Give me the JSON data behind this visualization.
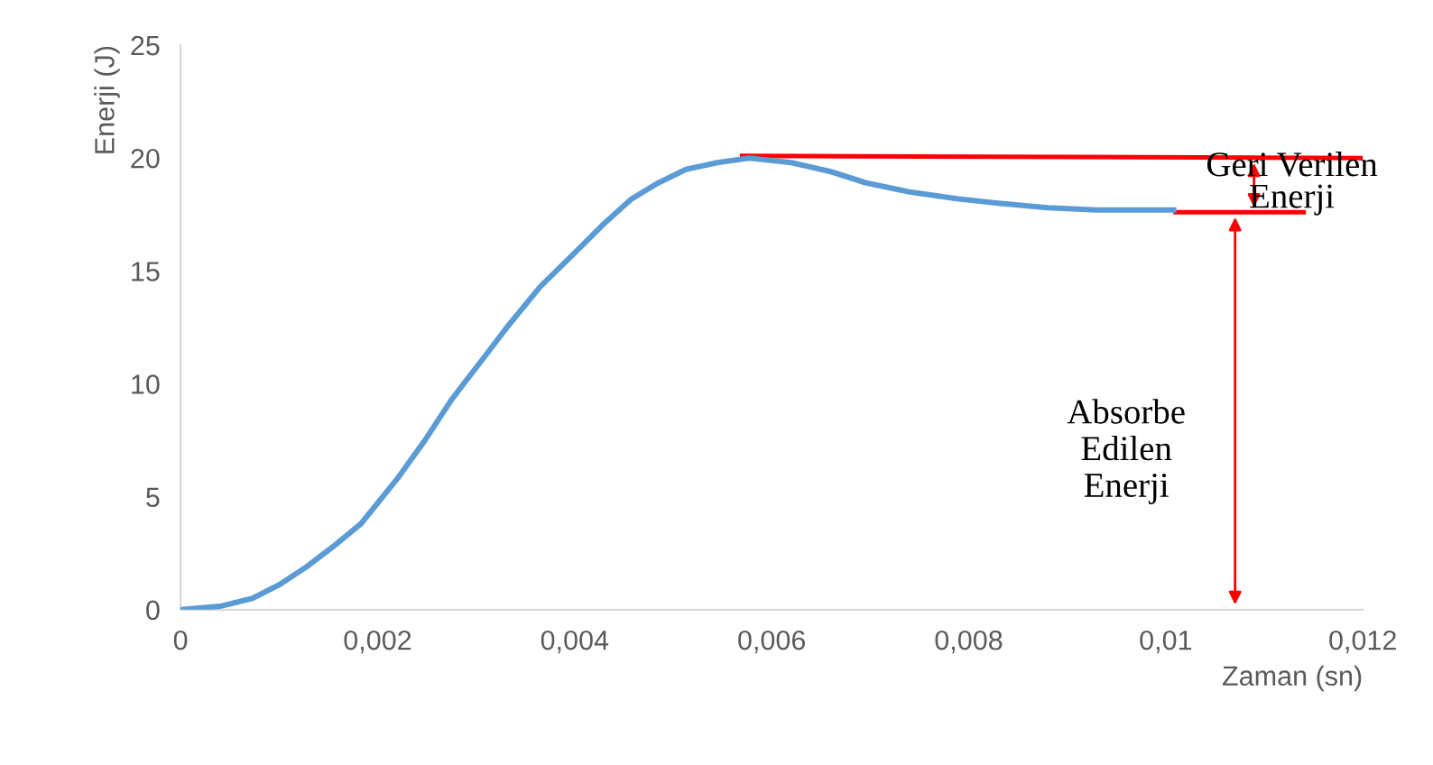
{
  "chart_data": {
    "type": "line",
    "xlabel": "Zaman (sn)",
    "ylabel": "Enerji (J)",
    "xlim": [
      0,
      0.012
    ],
    "ylim": [
      0,
      25
    ],
    "xticks": [
      0,
      {
        "value": 0.002,
        "label": "0,002"
      },
      {
        "value": 0.004,
        "label": "0,004"
      },
      {
        "value": 0.006,
        "label": "0,006"
      },
      {
        "value": 0.008,
        "label": "0,008"
      },
      {
        "value": 0.01,
        "label": "0,01"
      },
      {
        "value": 0.012,
        "label": "0,012"
      }
    ],
    "yticks": [
      0,
      5,
      10,
      15,
      20,
      25
    ],
    "grid": false,
    "legend": false,
    "marker": "none",
    "line_style": "solid",
    "series": [
      {
        "color": "#5b9bd5",
        "x": [
          0,
          0.0004,
          0.00073,
          0.001,
          0.00128,
          0.00155,
          0.00183,
          0.0022,
          0.00248,
          0.00275,
          0.00305,
          0.00333,
          0.00365,
          0.004,
          0.0043,
          0.00458,
          0.00485,
          0.00513,
          0.00545,
          0.00577,
          0.0062,
          0.0066,
          0.00696,
          0.0074,
          0.00788,
          0.0083,
          0.0088,
          0.0093,
          0.0097,
          0.01008
        ],
        "values": [
          0,
          0.15,
          0.5,
          1.1,
          1.9,
          2.8,
          3.8,
          5.8,
          7.5,
          9.3,
          11.0,
          12.6,
          14.3,
          15.8,
          17.1,
          18.2,
          18.9,
          19.5,
          19.8,
          20.0,
          19.8,
          19.4,
          18.9,
          18.5,
          18.2,
          18.0,
          17.8,
          17.7,
          17.7,
          17.7
        ]
      },
      {
        "color": "#ff0000",
        "x": [
          0.0057,
          0.012
        ],
        "values": [
          20.1,
          20.0
        ]
      },
      {
        "color": "#ff0000",
        "x": [
          0.0101,
          0.0114
        ],
        "values": [
          17.6,
          17.6
        ]
      }
    ],
    "annotations": [
      "Geri Verilen\nEnerji",
      "Absorbe\nEdilen\nEnerji"
    ]
  }
}
